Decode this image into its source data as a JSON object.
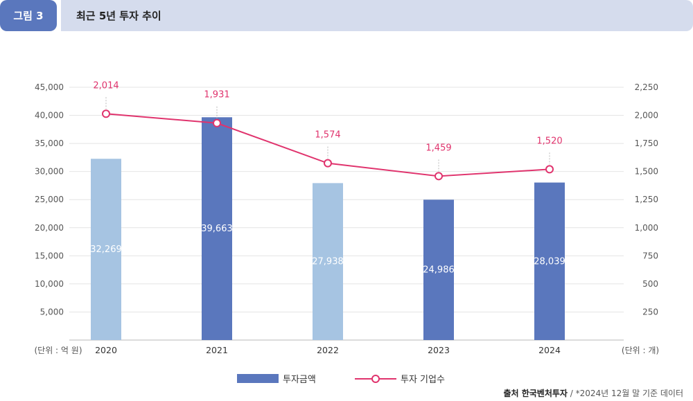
{
  "header": {
    "figure_label": "그림 3",
    "title": "최근 5년 투자 추이"
  },
  "chart_data": {
    "type": "bar",
    "title": "최근 5년 투자 추이",
    "categories": [
      "2020",
      "2021",
      "2022",
      "2023",
      "2024"
    ],
    "series": [
      {
        "name": "투자금액",
        "type": "bar",
        "axis": "left",
        "values": [
          32269,
          39663,
          27938,
          24986,
          28039
        ],
        "value_labels": [
          "32,269",
          "39,663",
          "27,938",
          "24,986",
          "28,039"
        ],
        "bar_colors": [
          "#a6c4e2",
          "#5a77bd",
          "#a6c4e2",
          "#5a77bd",
          "#5a77bd"
        ]
      },
      {
        "name": "투자 기업수",
        "type": "line",
        "axis": "right",
        "values": [
          2014,
          1931,
          1574,
          1459,
          1520
        ],
        "value_labels": [
          "2,014",
          "1,931",
          "1,574",
          "1,459",
          "1,520"
        ],
        "color": "#e0336d"
      }
    ],
    "left_axis": {
      "unit_label": "(단위 : 억 원)",
      "ylim": [
        0,
        45000
      ],
      "ticks": [
        5000,
        10000,
        15000,
        20000,
        25000,
        30000,
        35000,
        40000,
        45000
      ],
      "tick_labels": [
        "5,000",
        "10,000",
        "15,000",
        "20,000",
        "25,000",
        "30,000",
        "35,000",
        "40,000",
        "45,000"
      ]
    },
    "right_axis": {
      "unit_label": "(단위 : 개)",
      "ylim": [
        0,
        2250
      ],
      "ticks": [
        250,
        500,
        750,
        1000,
        1250,
        1500,
        1750,
        2000,
        2250
      ],
      "tick_labels": [
        "250",
        "500",
        "750",
        "1,000",
        "1,250",
        "1,500",
        "1,750",
        "2,000",
        "2,250"
      ]
    },
    "grid": true,
    "legend_position": "bottom-center",
    "colors": {
      "bar_dark": "#5a77bd",
      "bar_light": "#a6c4e2",
      "line": "#e0336d"
    }
  },
  "legend": {
    "bar_label": "투자금액",
    "line_label": "투자 기업수"
  },
  "source": {
    "label": "출처 한국벤처투자",
    "note": " / *2024년 12월 말 기준 데이터"
  }
}
